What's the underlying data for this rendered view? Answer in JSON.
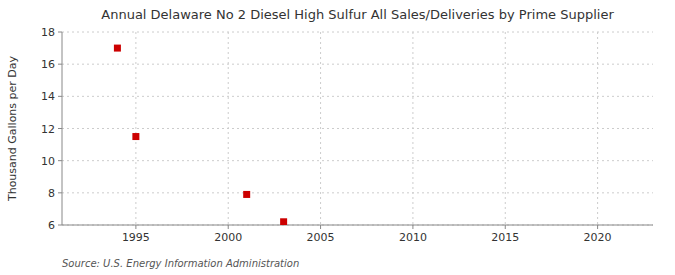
{
  "chart_data": {
    "type": "scatter",
    "title": "Annual Delaware No 2 Diesel High Sulfur All Sales/Deliveries by Prime Supplier",
    "y_label": "Thousand Gallons per Day",
    "annotations": [
      "Source: U.S. Energy Information Administration"
    ],
    "x": [
      1994,
      1995,
      2001,
      2003
    ],
    "values": [
      17.0,
      11.5,
      7.9,
      6.2
    ],
    "color": "#cc0000",
    "marker": "square",
    "xlim": [
      1991,
      2023
    ],
    "ylim": [
      6,
      18
    ],
    "xticks": [
      1995,
      2000,
      2005,
      2010,
      2015,
      2020
    ],
    "yticks": [
      6,
      8,
      10,
      12,
      14,
      16,
      18
    ],
    "grid": true
  }
}
